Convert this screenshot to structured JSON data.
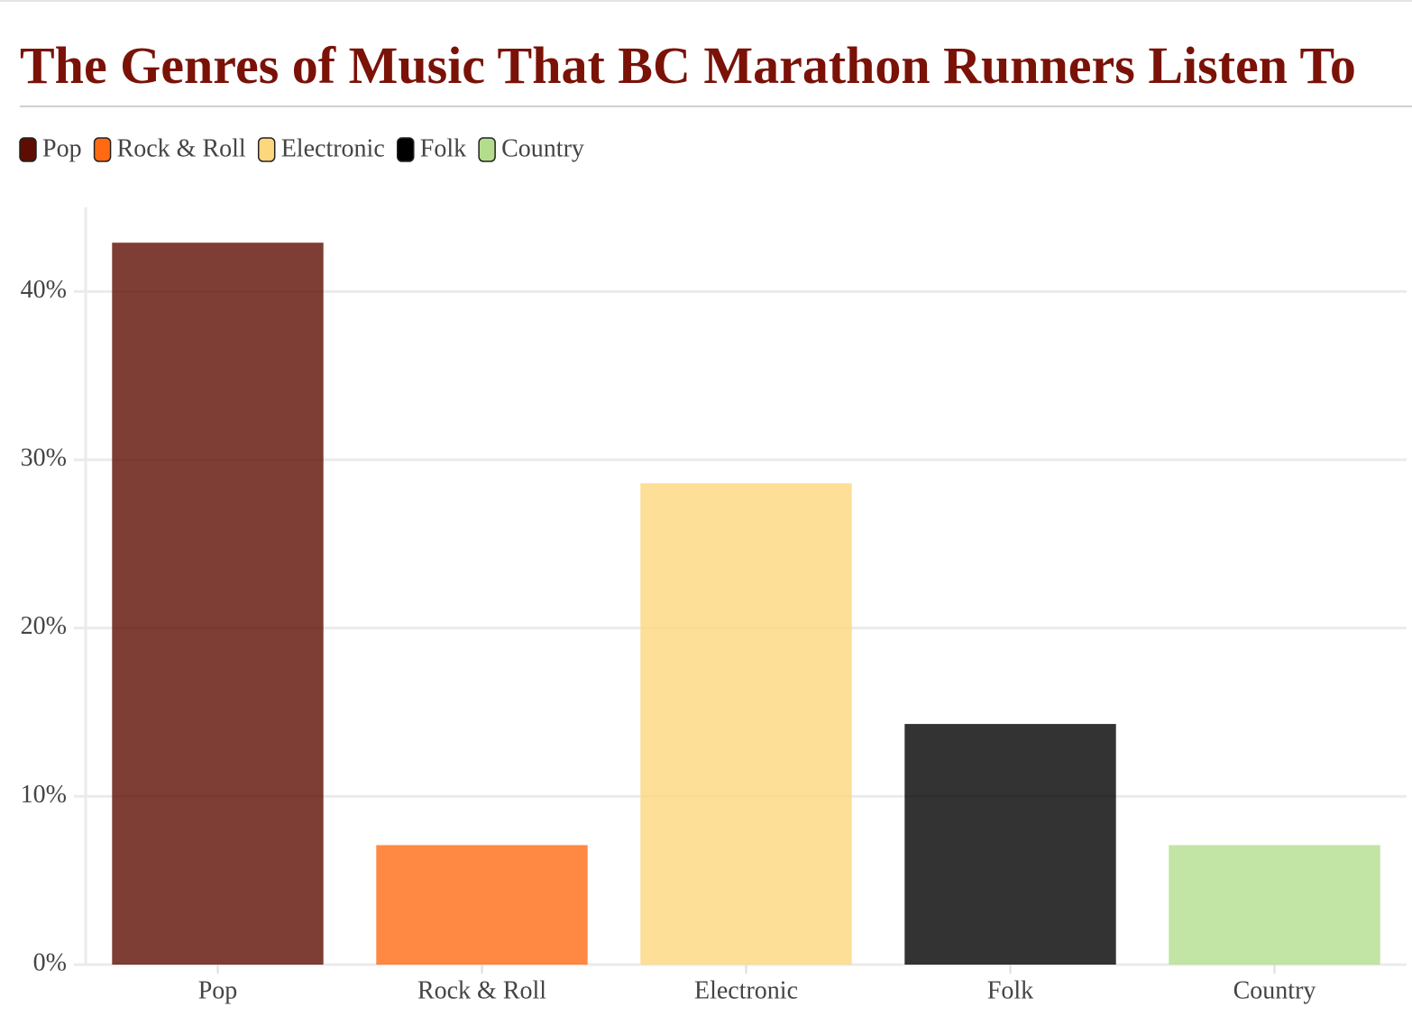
{
  "chart_data": {
    "type": "bar",
    "title": "The Genres of Music That BC Marathon Runners Listen To",
    "categories": [
      "Pop",
      "Rock & Roll",
      "Electronic",
      "Folk",
      "Country"
    ],
    "values": [
      42.9,
      7.1,
      28.6,
      14.3,
      7.1
    ],
    "colors": [
      "#5e0d03",
      "#ff6a13",
      "#fdd77e",
      "#000000",
      "#b3dd8d"
    ],
    "ylim": [
      0,
      45
    ],
    "yticks": [
      {
        "value": 0,
        "label": "0%"
      },
      {
        "value": 10,
        "label": "10%"
      },
      {
        "value": 20,
        "label": "20%"
      },
      {
        "value": 30,
        "label": "30%"
      },
      {
        "value": 40,
        "label": "40%"
      }
    ],
    "grid": true
  }
}
